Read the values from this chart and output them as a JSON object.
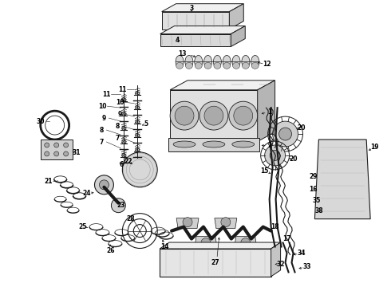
{
  "background_color": "#ffffff",
  "fig_width": 4.9,
  "fig_height": 3.6,
  "dpi": 100,
  "line_color": "#1a1a1a",
  "label_color": "#000000",
  "label_fontsize": 5.5
}
